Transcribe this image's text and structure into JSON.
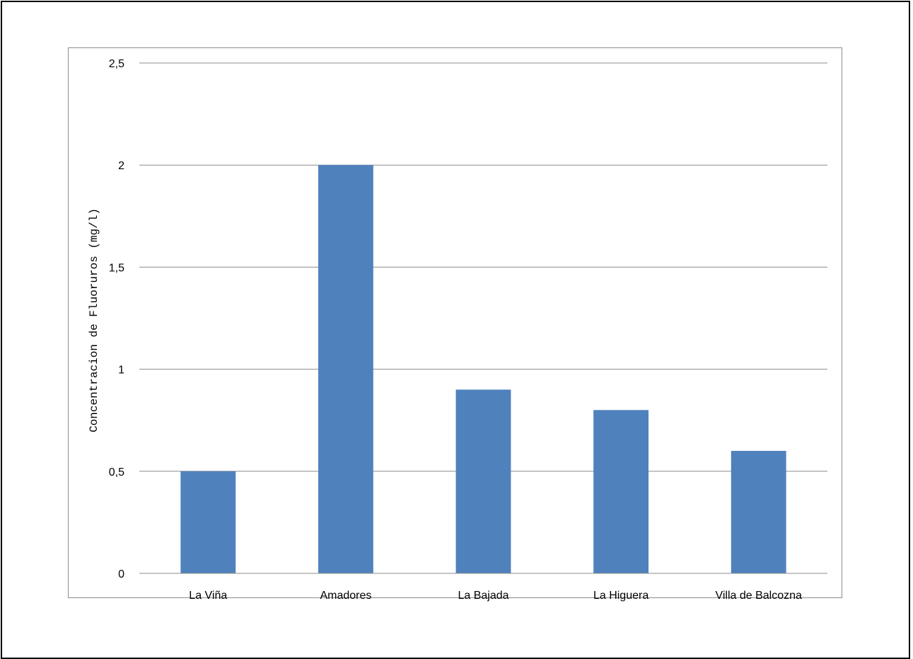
{
  "chart_data": {
    "type": "bar",
    "title": "",
    "xlabel": "",
    "ylabel": "Concentracion de Fluoruros (mg/l)",
    "categories": [
      "La Viña",
      "Amadores",
      "La Bajada",
      "La Higuera",
      "Villa de Balcozna"
    ],
    "values": [
      0.5,
      2,
      0.9,
      0.8,
      0.6
    ],
    "ylim": [
      0,
      2.5
    ],
    "yticks": [
      0,
      0.5,
      1,
      1.5,
      2,
      2.5
    ],
    "ytick_labels": [
      "0",
      "0,5",
      "1",
      "1,5",
      "2",
      "2,5"
    ],
    "grid": true,
    "legend": "none",
    "bar_color": "#4f81bd",
    "gridline_color": "#8c8c8c"
  }
}
